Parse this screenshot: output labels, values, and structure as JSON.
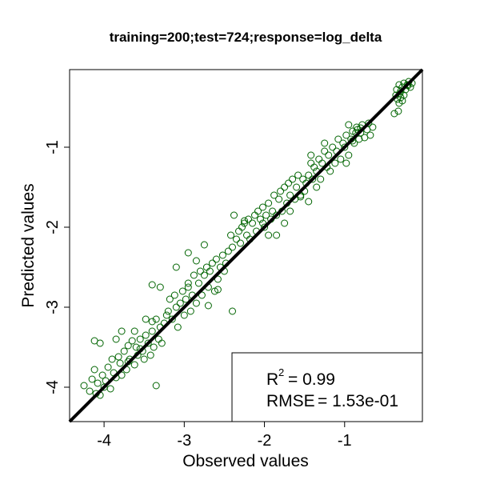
{
  "chart_data": {
    "type": "scatter",
    "title": "training=200;test=724;response=log_delta",
    "xlabel": "Observed values",
    "ylabel": "Predicted values",
    "xlim": [
      -4.43,
      -0.03
    ],
    "ylim": [
      -4.43,
      -0.03
    ],
    "x_ticks": [
      -4,
      -3,
      -2,
      -1
    ],
    "y_ticks": [
      -4,
      -3,
      -2,
      -1
    ],
    "tick_labels_x": [
      "-4",
      "-3",
      "-2",
      "-1"
    ],
    "tick_labels_y": [
      "-4",
      "-3",
      "-2",
      "-1"
    ],
    "reference_line": {
      "slope": 1,
      "intercept": 0,
      "color": "#000000"
    },
    "point_color": "#006400",
    "point_style": "open-circle",
    "grid": false,
    "legend_box": {
      "placement": "bottom-right",
      "r2_label": "R",
      "r2_superscript": "2",
      "r2_value": "= 0.99",
      "rmse_label": "RMSE",
      "rmse_value": "= 1.53e-01"
    },
    "points": [
      [
        -4.25,
        -3.98
      ],
      [
        -4.18,
        -4.05
      ],
      [
        -4.15,
        -3.9
      ],
      [
        -4.12,
        -3.78
      ],
      [
        -4.1,
        -4.08
      ],
      [
        -4.08,
        -3.95
      ],
      [
        -4.05,
        -4.1
      ],
      [
        -4.02,
        -3.85
      ],
      [
        -4.0,
        -4.0
      ],
      [
        -3.98,
        -3.92
      ],
      [
        -3.95,
        -3.75
      ],
      [
        -3.92,
        -4.02
      ],
      [
        -3.9,
        -3.65
      ],
      [
        -3.88,
        -3.82
      ],
      [
        -3.85,
        -3.88
      ],
      [
        -3.82,
        -3.62
      ],
      [
        -3.8,
        -3.7
      ],
      [
        -3.78,
        -3.85
      ],
      [
        -3.75,
        -3.55
      ],
      [
        -3.72,
        -3.78
      ],
      [
        -3.7,
        -3.48
      ],
      [
        -3.68,
        -3.65
      ],
      [
        -3.65,
        -3.42
      ],
      [
        -3.62,
        -3.72
      ],
      [
        -3.6,
        -3.5
      ],
      [
        -3.58,
        -3.6
      ],
      [
        -3.55,
        -3.4
      ],
      [
        -3.52,
        -3.55
      ],
      [
        -3.5,
        -3.65
      ],
      [
        -3.48,
        -3.35
      ],
      [
        -3.45,
        -3.45
      ],
      [
        -3.42,
        -3.6
      ],
      [
        -3.4,
        -3.3
      ],
      [
        -3.38,
        -3.5
      ],
      [
        -3.35,
        -3.15
      ],
      [
        -3.32,
        -3.4
      ],
      [
        -3.3,
        -3.25
      ],
      [
        -3.28,
        -3.45
      ],
      [
        -3.25,
        -3.2
      ],
      [
        -3.22,
        -3.1
      ],
      [
        -4.12,
        -3.42
      ],
      [
        -4.05,
        -3.45
      ],
      [
        -3.85,
        -3.4
      ],
      [
        -3.78,
        -3.3
      ],
      [
        -3.62,
        -3.3
      ],
      [
        -3.55,
        -3.52
      ],
      [
        -3.48,
        -3.15
      ],
      [
        -3.4,
        -3.18
      ],
      [
        -3.7,
        -3.68
      ],
      [
        -3.35,
        -3.98
      ],
      [
        -3.2,
        -3.05
      ],
      [
        -3.18,
        -2.9
      ],
      [
        -3.15,
        -3.15
      ],
      [
        -3.12,
        -2.85
      ],
      [
        -3.1,
        -3.0
      ],
      [
        -3.08,
        -3.25
      ],
      [
        -3.05,
        -2.95
      ],
      [
        -3.02,
        -2.8
      ],
      [
        -3.0,
        -3.1
      ],
      [
        -2.98,
        -2.9
      ],
      [
        -2.95,
        -2.75
      ],
      [
        -2.92,
        -3.05
      ],
      [
        -2.9,
        -2.85
      ],
      [
        -2.88,
        -2.6
      ],
      [
        -2.85,
        -2.95
      ],
      [
        -2.82,
        -2.7
      ],
      [
        -2.8,
        -2.55
      ],
      [
        -2.78,
        -2.85
      ],
      [
        -2.75,
        -2.6
      ],
      [
        -2.72,
        -2.5
      ],
      [
        -2.7,
        -2.75
      ],
      [
        -2.68,
        -2.55
      ],
      [
        -2.65,
        -2.45
      ],
      [
        -2.62,
        -2.8
      ],
      [
        -2.6,
        -2.4
      ],
      [
        -2.58,
        -2.65
      ],
      [
        -2.55,
        -2.5
      ],
      [
        -2.52,
        -2.35
      ],
      [
        -2.5,
        -2.55
      ],
      [
        -2.48,
        -2.45
      ],
      [
        -3.4,
        -2.72
      ],
      [
        -3.3,
        -2.75
      ],
      [
        -3.1,
        -2.5
      ],
      [
        -2.95,
        -2.7
      ],
      [
        -2.7,
        -2.98
      ],
      [
        -2.58,
        -2.78
      ],
      [
        -2.4,
        -3.05
      ],
      [
        -2.95,
        -2.32
      ],
      [
        -2.85,
        -2.42
      ],
      [
        -2.75,
        -2.22
      ],
      [
        -2.45,
        -2.3
      ],
      [
        -2.42,
        -2.1
      ],
      [
        -2.4,
        -2.25
      ],
      [
        -2.38,
        -1.85
      ],
      [
        -2.35,
        -2.15
      ],
      [
        -2.32,
        -2.05
      ],
      [
        -2.3,
        -2.2
      ],
      [
        -2.28,
        -2.0
      ],
      [
        -2.25,
        -1.95
      ],
      [
        -2.22,
        -2.1
      ],
      [
        -2.2,
        -1.9
      ],
      [
        -2.18,
        -2.15
      ],
      [
        -2.15,
        -1.95
      ],
      [
        -2.12,
        -1.85
      ],
      [
        -2.1,
        -2.05
      ],
      [
        -2.08,
        -1.8
      ],
      [
        -2.05,
        -1.9
      ],
      [
        -2.02,
        -1.75
      ],
      [
        -2.0,
        -2.0
      ],
      [
        -1.98,
        -1.85
      ],
      [
        -1.95,
        -1.7
      ],
      [
        -1.92,
        -1.9
      ],
      [
        -1.9,
        -1.8
      ],
      [
        -1.88,
        -1.6
      ],
      [
        -1.85,
        -1.85
      ],
      [
        -1.82,
        -1.65
      ],
      [
        -1.8,
        -1.55
      ],
      [
        -1.78,
        -1.8
      ],
      [
        -1.75,
        -1.5
      ],
      [
        -1.72,
        -1.7
      ],
      [
        -1.7,
        -1.45
      ],
      [
        -1.68,
        -1.6
      ],
      [
        -1.65,
        -1.4
      ],
      [
        -1.62,
        -1.65
      ],
      [
        -1.6,
        -1.5
      ],
      [
        -1.58,
        -1.35
      ],
      [
        -1.55,
        -1.6
      ],
      [
        -1.52,
        -1.4
      ],
      [
        -1.5,
        -1.55
      ],
      [
        -1.48,
        -1.45
      ],
      [
        -2.25,
        -1.92
      ],
      [
        -2.02,
        -1.95
      ],
      [
        -1.95,
        -2.1
      ],
      [
        -1.85,
        -2.1
      ],
      [
        -1.75,
        -1.95
      ],
      [
        -1.68,
        -1.8
      ],
      [
        -1.55,
        -1.62
      ],
      [
        -1.45,
        -1.68
      ],
      [
        -1.42,
        -1.1
      ],
      [
        -1.35,
        -1.5
      ],
      [
        -1.45,
        -1.35
      ],
      [
        -1.42,
        -1.2
      ],
      [
        -1.4,
        -1.4
      ],
      [
        -1.38,
        -1.25
      ],
      [
        -1.35,
        -1.3
      ],
      [
        -1.32,
        -1.15
      ],
      [
        -1.3,
        -1.4
      ],
      [
        -1.28,
        -1.2
      ],
      [
        -1.25,
        -1.05
      ],
      [
        -1.22,
        -1.25
      ],
      [
        -1.2,
        -1.1
      ],
      [
        -1.18,
        -1.3
      ],
      [
        -1.15,
        -1.0
      ],
      [
        -1.12,
        -1.2
      ],
      [
        -1.1,
        -1.05
      ],
      [
        -1.08,
        -0.9
      ],
      [
        -1.05,
        -1.15
      ],
      [
        -1.02,
        -0.95
      ],
      [
        -1.0,
        -1.0
      ],
      [
        -0.98,
        -0.85
      ],
      [
        -0.95,
        -1.1
      ],
      [
        -0.92,
        -0.9
      ],
      [
        -0.9,
        -0.8
      ],
      [
        -0.88,
        -0.95
      ],
      [
        -0.85,
        -0.75
      ],
      [
        -0.82,
        -0.9
      ],
      [
        -0.8,
        -0.82
      ],
      [
        -0.78,
        -0.72
      ],
      [
        -0.75,
        -0.88
      ],
      [
        -0.72,
        -0.78
      ],
      [
        -0.7,
        -0.7
      ],
      [
        -0.68,
        -0.85
      ],
      [
        -0.65,
        -0.75
      ],
      [
        -1.25,
        -0.95
      ],
      [
        -0.98,
        -1.2
      ],
      [
        -0.95,
        -0.72
      ],
      [
        -0.9,
        -0.92
      ],
      [
        -0.86,
        -0.82
      ],
      [
        -0.84,
        -0.78
      ],
      [
        -0.8,
        -0.76
      ],
      [
        -0.35,
        -0.28
      ],
      [
        -0.32,
        -0.22
      ],
      [
        -0.3,
        -0.3
      ],
      [
        -0.28,
        -0.25
      ],
      [
        -0.26,
        -0.2
      ],
      [
        -0.24,
        -0.28
      ],
      [
        -0.22,
        -0.22
      ],
      [
        -0.2,
        -0.18
      ],
      [
        -0.18,
        -0.25
      ],
      [
        -0.16,
        -0.2
      ],
      [
        -0.34,
        -0.4
      ],
      [
        -0.32,
        -0.45
      ],
      [
        -0.3,
        -0.38
      ],
      [
        -0.28,
        -0.42
      ],
      [
        -0.36,
        -0.35
      ],
      [
        -0.31,
        -0.33
      ],
      [
        -0.26,
        -0.35
      ],
      [
        -0.38,
        -0.58
      ],
      [
        -0.33,
        -0.55
      ],
      [
        -0.21,
        -0.23
      ]
    ]
  }
}
